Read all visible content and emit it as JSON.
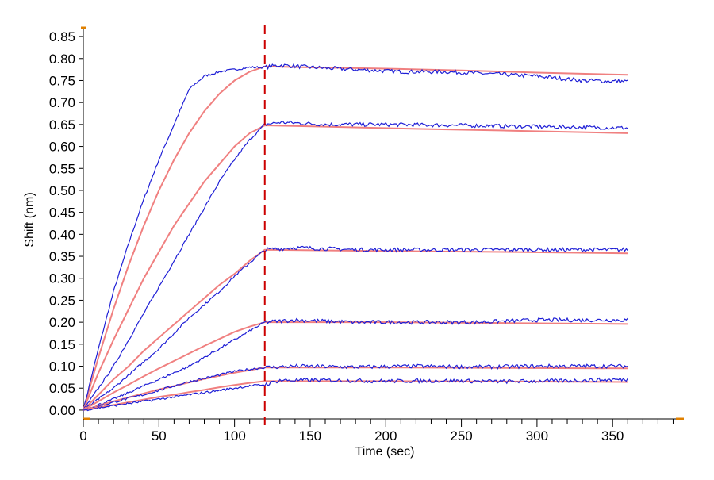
{
  "chart_data": {
    "type": "line",
    "title": "",
    "xlabel": "Time (sec)",
    "ylabel": "Shift (nm)",
    "xlim": [
      0,
      395
    ],
    "ylim": [
      -0.02,
      0.87
    ],
    "x_ticks": [
      0,
      50,
      100,
      150,
      200,
      250,
      300,
      350
    ],
    "x_minor_step": 10,
    "y_ticks": [
      0.0,
      0.05,
      0.1,
      0.15,
      0.2,
      0.25,
      0.3,
      0.35,
      0.4,
      0.45,
      0.5,
      0.55,
      0.6,
      0.65,
      0.7,
      0.75,
      0.8,
      0.85
    ],
    "grid": false,
    "legend": "none",
    "association_end": 120,
    "vline_x": 120,
    "colors": {
      "data": "#1f1fd6",
      "fit": "#f08080",
      "vline": "#cc0000",
      "axis": "#000000",
      "axis_end": "#e08000"
    },
    "series": [
      {
        "data": [
          [
            0,
            0
          ],
          [
            10,
            0.14
          ],
          [
            20,
            0.27
          ],
          [
            30,
            0.38
          ],
          [
            40,
            0.48
          ],
          [
            50,
            0.57
          ],
          [
            60,
            0.65
          ],
          [
            70,
            0.73
          ],
          [
            80,
            0.76
          ],
          [
            90,
            0.77
          ],
          [
            100,
            0.775
          ],
          [
            110,
            0.78
          ],
          [
            120,
            0.78
          ],
          [
            130,
            0.785
          ],
          [
            150,
            0.78
          ],
          [
            180,
            0.775
          ],
          [
            210,
            0.77
          ],
          [
            240,
            0.77
          ],
          [
            270,
            0.765
          ],
          [
            300,
            0.76
          ],
          [
            330,
            0.75
          ],
          [
            360,
            0.748
          ]
        ],
        "fit": [
          [
            0,
            0
          ],
          [
            10,
            0.12
          ],
          [
            20,
            0.23
          ],
          [
            30,
            0.33
          ],
          [
            40,
            0.42
          ],
          [
            50,
            0.5
          ],
          [
            60,
            0.57
          ],
          [
            70,
            0.63
          ],
          [
            80,
            0.68
          ],
          [
            90,
            0.72
          ],
          [
            100,
            0.75
          ],
          [
            110,
            0.77
          ],
          [
            120,
            0.782
          ],
          [
            150,
            0.78
          ],
          [
            200,
            0.777
          ],
          [
            250,
            0.773
          ],
          [
            300,
            0.768
          ],
          [
            360,
            0.763
          ]
        ]
      },
      {
        "data": [
          [
            0,
            0
          ],
          [
            10,
            0.05
          ],
          [
            20,
            0.1
          ],
          [
            30,
            0.16
          ],
          [
            40,
            0.22
          ],
          [
            50,
            0.28
          ],
          [
            60,
            0.34
          ],
          [
            70,
            0.4
          ],
          [
            80,
            0.46
          ],
          [
            90,
            0.52
          ],
          [
            100,
            0.57
          ],
          [
            110,
            0.615
          ],
          [
            120,
            0.65
          ],
          [
            130,
            0.655
          ],
          [
            160,
            0.65
          ],
          [
            200,
            0.65
          ],
          [
            250,
            0.648
          ],
          [
            300,
            0.645
          ],
          [
            360,
            0.642
          ]
        ],
        "fit": [
          [
            0,
            0
          ],
          [
            10,
            0.085
          ],
          [
            20,
            0.16
          ],
          [
            30,
            0.23
          ],
          [
            40,
            0.3
          ],
          [
            50,
            0.36
          ],
          [
            60,
            0.42
          ],
          [
            70,
            0.47
          ],
          [
            80,
            0.52
          ],
          [
            90,
            0.56
          ],
          [
            100,
            0.6
          ],
          [
            110,
            0.63
          ],
          [
            120,
            0.648
          ],
          [
            160,
            0.645
          ],
          [
            220,
            0.64
          ],
          [
            280,
            0.636
          ],
          [
            360,
            0.63
          ]
        ]
      },
      {
        "data": [
          [
            0,
            0
          ],
          [
            10,
            0.025
          ],
          [
            20,
            0.05
          ],
          [
            30,
            0.08
          ],
          [
            40,
            0.11
          ],
          [
            50,
            0.14
          ],
          [
            60,
            0.175
          ],
          [
            70,
            0.21
          ],
          [
            80,
            0.24
          ],
          [
            90,
            0.27
          ],
          [
            100,
            0.305
          ],
          [
            110,
            0.335
          ],
          [
            120,
            0.365
          ],
          [
            140,
            0.37
          ],
          [
            180,
            0.365
          ],
          [
            220,
            0.365
          ],
          [
            260,
            0.365
          ],
          [
            300,
            0.365
          ],
          [
            360,
            0.365
          ]
        ],
        "fit": [
          [
            0,
            0
          ],
          [
            10,
            0.035
          ],
          [
            20,
            0.07
          ],
          [
            30,
            0.1
          ],
          [
            40,
            0.135
          ],
          [
            50,
            0.165
          ],
          [
            60,
            0.195
          ],
          [
            70,
            0.225
          ],
          [
            80,
            0.255
          ],
          [
            90,
            0.285
          ],
          [
            100,
            0.31
          ],
          [
            110,
            0.34
          ],
          [
            120,
            0.365
          ],
          [
            200,
            0.362
          ],
          [
            280,
            0.36
          ],
          [
            360,
            0.357
          ]
        ]
      },
      {
        "data": [
          [
            0,
            0
          ],
          [
            10,
            0.012
          ],
          [
            20,
            0.025
          ],
          [
            30,
            0.04
          ],
          [
            40,
            0.055
          ],
          [
            50,
            0.07
          ],
          [
            60,
            0.085
          ],
          [
            70,
            0.1
          ],
          [
            80,
            0.12
          ],
          [
            90,
            0.14
          ],
          [
            100,
            0.16
          ],
          [
            110,
            0.18
          ],
          [
            120,
            0.2
          ],
          [
            140,
            0.205
          ],
          [
            180,
            0.2
          ],
          [
            220,
            0.2
          ],
          [
            260,
            0.2
          ],
          [
            300,
            0.205
          ],
          [
            360,
            0.205
          ]
        ],
        "fit": [
          [
            0,
            0
          ],
          [
            10,
            0.02
          ],
          [
            20,
            0.04
          ],
          [
            30,
            0.058
          ],
          [
            40,
            0.077
          ],
          [
            50,
            0.095
          ],
          [
            60,
            0.112
          ],
          [
            70,
            0.129
          ],
          [
            80,
            0.146
          ],
          [
            90,
            0.162
          ],
          [
            100,
            0.178
          ],
          [
            110,
            0.19
          ],
          [
            120,
            0.2
          ],
          [
            200,
            0.2
          ],
          [
            280,
            0.198
          ],
          [
            360,
            0.196
          ]
        ]
      },
      {
        "data": [
          [
            0,
            0
          ],
          [
            10,
            0.008
          ],
          [
            20,
            0.018
          ],
          [
            30,
            0.027
          ],
          [
            40,
            0.035
          ],
          [
            50,
            0.045
          ],
          [
            60,
            0.055
          ],
          [
            70,
            0.065
          ],
          [
            80,
            0.072
          ],
          [
            90,
            0.08
          ],
          [
            100,
            0.088
          ],
          [
            110,
            0.093
          ],
          [
            120,
            0.097
          ],
          [
            140,
            0.1
          ],
          [
            180,
            0.098
          ],
          [
            220,
            0.1
          ],
          [
            260,
            0.098
          ],
          [
            300,
            0.1
          ],
          [
            360,
            0.1
          ]
        ],
        "fit": [
          [
            0,
            0
          ],
          [
            10,
            0.01
          ],
          [
            20,
            0.02
          ],
          [
            30,
            0.029
          ],
          [
            40,
            0.038
          ],
          [
            50,
            0.047
          ],
          [
            60,
            0.055
          ],
          [
            70,
            0.063
          ],
          [
            80,
            0.071
          ],
          [
            90,
            0.078
          ],
          [
            100,
            0.085
          ],
          [
            110,
            0.091
          ],
          [
            120,
            0.097
          ],
          [
            200,
            0.097
          ],
          [
            280,
            0.096
          ],
          [
            360,
            0.095
          ]
        ]
      },
      {
        "data": [
          [
            0,
            0
          ],
          [
            10,
            0.005
          ],
          [
            20,
            0.01
          ],
          [
            30,
            0.015
          ],
          [
            40,
            0.02
          ],
          [
            50,
            0.025
          ],
          [
            60,
            0.03
          ],
          [
            70,
            0.035
          ],
          [
            80,
            0.04
          ],
          [
            90,
            0.045
          ],
          [
            100,
            0.05
          ],
          [
            110,
            0.055
          ],
          [
            120,
            0.058
          ],
          [
            130,
            0.068
          ],
          [
            160,
            0.068
          ],
          [
            200,
            0.066
          ],
          [
            240,
            0.067
          ],
          [
            280,
            0.065
          ],
          [
            320,
            0.067
          ],
          [
            360,
            0.07
          ]
        ],
        "fit": [
          [
            0,
            0
          ],
          [
            10,
            0.006
          ],
          [
            20,
            0.012
          ],
          [
            30,
            0.018
          ],
          [
            40,
            0.024
          ],
          [
            50,
            0.03
          ],
          [
            60,
            0.035
          ],
          [
            70,
            0.041
          ],
          [
            80,
            0.046
          ],
          [
            90,
            0.052
          ],
          [
            100,
            0.057
          ],
          [
            110,
            0.062
          ],
          [
            120,
            0.066
          ],
          [
            200,
            0.066
          ],
          [
            280,
            0.065
          ],
          [
            360,
            0.064
          ]
        ]
      }
    ]
  }
}
